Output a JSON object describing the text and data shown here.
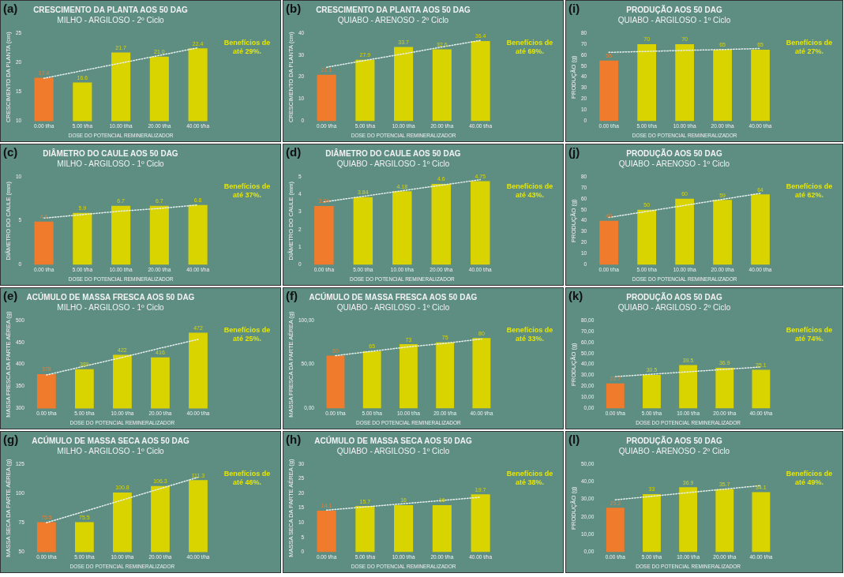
{
  "chart_data": [
    {
      "type": "bar",
      "title": "CRESCIMENTO DA PLANTA AOS 50 DAG",
      "subtitle": "MILHO - ARGILOSO - 2º Ciclo",
      "xlabel": "DOSE DO POTENCIAL REMINERALIZADOR",
      "ylabel": "CRESCIMENTO DA PLANTA (cm)",
      "categories": [
        "0.00 t/ha",
        "5.00 t/ha",
        "10.00 t/ha",
        "20.00 t/ha",
        "40.00 t/ha"
      ],
      "ylim": [
        10,
        25
      ],
      "yticks": [
        10,
        15,
        20,
        25
      ],
      "grid": false,
      "legend": false,
      "annotations": [
        "(a)",
        "Benefícios de até 29%."
      ],
      "series": [
        {
          "colors": [
            "#f07b2c",
            "#d9d400",
            "#d9d400",
            "#d9d400",
            "#d9d400"
          ],
          "values": [
            17.4,
            16.6,
            21.7,
            21.0,
            22.4
          ],
          "value_labels": [
            "17.4",
            "16.6",
            "21.7",
            "21.0",
            "22.4"
          ]
        },
        {
          "type": "line",
          "color": "#e8f0ee",
          "line_style": "dotted",
          "marker": "none",
          "values": [
            17.3,
            18.6,
            19.9,
            21.2,
            22.5
          ]
        }
      ]
    },
    {
      "type": "bar",
      "title": "CRESCIMENTO DA PLANTA AOS 50 DAG",
      "subtitle": "QUIABO - ARENOSO - 2º Ciclo",
      "xlabel": "DOSE DO POTENCIAL REMINERALIZADOR",
      "ylabel": "CRESCIMENTO DA PLANTA (cm)",
      "categories": [
        "0.00 t/ha",
        "5.00 t/ha",
        "10.00 t/ha",
        "20.00 t/ha",
        "40.00 t/ha"
      ],
      "ylim": [
        0,
        40
      ],
      "yticks": [
        0,
        10,
        20,
        30,
        40
      ],
      "grid": false,
      "legend": false,
      "annotations": [
        "(b)",
        "Benefícios de até 69%."
      ],
      "series": [
        {
          "colors": [
            "#f07b2c",
            "#d9d400",
            "#d9d400",
            "#d9d400",
            "#d9d400"
          ],
          "values": [
            21.1,
            27.9,
            33.7,
            32.6,
            36.4
          ],
          "value_labels": [
            "21.1",
            "27.9",
            "33.7",
            "32.6",
            "36.4"
          ]
        },
        {
          "type": "line",
          "color": "#e8f0ee",
          "line_style": "dotted",
          "marker": "none",
          "values": [
            24.5,
            27.6,
            30.6,
            33.7,
            36.7
          ]
        }
      ]
    },
    {
      "type": "bar",
      "title": "PRODUÇÃO AOS 50 DAG",
      "subtitle": "QUIABO - ARGILOSO - 1º Ciclo",
      "xlabel": "DOSE DO POTENCIAL REMINERALIZADOR",
      "ylabel": "PRODUÇÃO (g)",
      "categories": [
        "0.00 t/ha",
        "5.00 t/ha",
        "10.00 t/ha",
        "20.00 t/ha",
        "40.00 t/ha"
      ],
      "ylim": [
        0,
        80
      ],
      "yticks": [
        0,
        10,
        20,
        30,
        40,
        50,
        60,
        70,
        80
      ],
      "grid": false,
      "legend": false,
      "annotations": [
        "(i)",
        "Benefícios de até 27%."
      ],
      "series": [
        {
          "colors": [
            "#f07b2c",
            "#d9d400",
            "#d9d400",
            "#d9d400",
            "#d9d400"
          ],
          "values": [
            55,
            70,
            70,
            65,
            65
          ],
          "value_labels": [
            "55",
            "70",
            "70",
            "65",
            "65"
          ]
        },
        {
          "type": "line",
          "color": "#e8f0ee",
          "line_style": "dotted",
          "marker": "none",
          "values": [
            62.5,
            63.4,
            64.3,
            65.1,
            66
          ]
        }
      ]
    },
    {
      "type": "bar",
      "title": "DIÂMETRO DO CAULE AOS 50 DAG",
      "subtitle": "MILHO - ARGILOSO - 1º Ciclo",
      "xlabel": "DOSE DO POTENCIAL REMINERALIZADOR",
      "ylabel": "DIÂMETRO DO CAULE (mm)",
      "categories": [
        "0.00 t/ha",
        "5.00 t/ha",
        "10.00 t/ha",
        "20.00 t/ha",
        "40.00 t/ha"
      ],
      "ylim": [
        0,
        10
      ],
      "yticks": [
        0,
        5,
        10
      ],
      "grid": false,
      "legend": false,
      "annotations": [
        "(c)",
        "Benefícios de até 37%."
      ],
      "series": [
        {
          "colors": [
            "#f07b2c",
            "#d9d400",
            "#d9d400",
            "#d9d400",
            "#d9d400"
          ],
          "values": [
            4.9,
            5.9,
            6.7,
            6.7,
            6.8
          ],
          "value_labels": [
            "4.9",
            "5.9",
            "6.7",
            "6.7",
            "6.8"
          ]
        },
        {
          "type": "line",
          "color": "#e8f0ee",
          "line_style": "dotted",
          "marker": "none",
          "values": [
            5.3,
            5.7,
            6.1,
            6.4,
            6.8
          ]
        }
      ]
    },
    {
      "type": "bar",
      "title": "DIÂMETRO DO CAULE AOS 50 DAG",
      "subtitle": "QUIABO - ARGILOSO - 1º Ciclo",
      "xlabel": "DOSE DO POTENCIAL REMINERALIZADOR",
      "ylabel": "DIÂMETRO DO CAULE (mm)",
      "categories": [
        "0.00 t/ha",
        "5.00 t/ha",
        "10.00 t/ha",
        "20.00 t/ha",
        "40.00 t/ha"
      ],
      "ylim": [
        0,
        5
      ],
      "yticks": [
        0,
        1,
        2,
        3,
        4,
        5
      ],
      "grid": false,
      "legend": false,
      "annotations": [
        "(d)",
        "Benefícios de até 43%."
      ],
      "series": [
        {
          "colors": [
            "#f07b2c",
            "#d9d400",
            "#d9d400",
            "#d9d400",
            "#d9d400"
          ],
          "values": [
            3.34,
            3.84,
            4.18,
            4.6,
            4.75
          ],
          "value_labels": [
            "3.34",
            "3.84",
            "4.18",
            "4.6",
            "4.75"
          ]
        },
        {
          "type": "line",
          "color": "#e8f0ee",
          "line_style": "dotted",
          "marker": "none",
          "values": [
            3.57,
            3.89,
            4.21,
            4.52,
            4.84
          ]
        }
      ]
    },
    {
      "type": "bar",
      "title": "PRODUÇÃO AOS 50 DAG",
      "subtitle": "QUIABO - ARENOSO - 1º Ciclo",
      "xlabel": "DOSE DO POTENCIAL REMINERALIZADOR",
      "ylabel": "PRODUÇÃO (g)",
      "categories": [
        "0.00 t/ha",
        "5.00 t/ha",
        "10.00 t/ha",
        "20.00 t/ha",
        "40.00 t/ha"
      ],
      "ylim": [
        0,
        80
      ],
      "yticks": [
        0,
        10,
        20,
        30,
        40,
        50,
        60,
        70,
        80
      ],
      "grid": false,
      "legend": false,
      "annotations": [
        "(j)",
        "Benefícios de até 62%."
      ],
      "series": [
        {
          "colors": [
            "#f07b2c",
            "#d9d400",
            "#d9d400",
            "#d9d400",
            "#d9d400"
          ],
          "values": [
            40,
            50,
            60,
            59,
            64
          ],
          "value_labels": [
            "40",
            "50",
            "60",
            "59",
            "64"
          ]
        },
        {
          "type": "line",
          "color": "#e8f0ee",
          "line_style": "dotted",
          "marker": "none",
          "values": [
            43,
            48.5,
            54,
            59.5,
            65
          ]
        }
      ]
    },
    {
      "type": "bar",
      "title": "ACÚMULO DE MASSA FRESCA AOS 50 DAG",
      "subtitle": "MILHO - ARGILOSO - 1º Ciclo",
      "xlabel": "DOSE DO POTENCIAL REMINERALIZADOR",
      "ylabel": "MASSA FRESCA DA PARTE AÉREA (g)",
      "categories": [
        "0.00 t/ha",
        "5.00 t/ha",
        "10.00 t/ha",
        "20.00 t/ha",
        "40.00 t/ha"
      ],
      "ylim": [
        300,
        500
      ],
      "yticks": [
        300,
        350,
        400,
        450,
        500
      ],
      "grid": false,
      "legend": false,
      "annotations": [
        "(e)",
        "Benefícios de até 25%."
      ],
      "series": [
        {
          "colors": [
            "#f07b2c",
            "#d9d400",
            "#d9d400",
            "#d9d400",
            "#d9d400"
          ],
          "values": [
            378,
            389,
            422,
            416,
            472
          ],
          "value_labels": [
            "378",
            "389",
            "422",
            "416",
            "472"
          ]
        },
        {
          "type": "line",
          "color": "#e8f0ee",
          "line_style": "dotted",
          "marker": "none",
          "values": [
            376,
            396,
            416,
            437,
            457
          ]
        }
      ]
    },
    {
      "type": "bar",
      "title": "ACÚMULO DE MASSA FRESCA AOS 50 DAG",
      "subtitle": "QUIABO - ARGILOSO - 1º Ciclo",
      "xlabel": "DOSE DO POTENCIAL REMINERALIZADOR",
      "ylabel": "MASSA FRESCA DA PARTE AÉREA (g)",
      "categories": [
        "0.00 t/ha",
        "5.00 t/ha",
        "10.00 t/ha",
        "20.00 t/ha",
        "40.00 t/ha"
      ],
      "ylim": [
        0,
        100
      ],
      "yticks": [
        {
          "value": 0,
          "label": "0,00"
        },
        {
          "value": 50,
          "label": "50,00"
        },
        {
          "value": 100,
          "label": "100,00"
        }
      ],
      "grid": false,
      "legend": false,
      "annotations": [
        "(f)",
        "Benefícios de até 33%."
      ],
      "series": [
        {
          "colors": [
            "#f07b2c",
            "#d9d400",
            "#d9d400",
            "#d9d400",
            "#d9d400"
          ],
          "values": [
            60,
            65,
            73,
            75,
            80
          ],
          "value_labels": [
            "60",
            "65",
            "73",
            "75",
            "80"
          ]
        },
        {
          "type": "line",
          "color": "#e8f0ee",
          "line_style": "dotted",
          "marker": "none",
          "values": [
            60,
            65,
            70,
            74,
            79
          ]
        }
      ]
    },
    {
      "type": "bar",
      "title": "PRODUÇÃO AOS 50 DAG",
      "subtitle": "QUIABO - ARGILOSO - 2º Ciclo",
      "xlabel": "DOSE DO POTENCIAL REMINERALIZADOR",
      "ylabel": "PRODUÇÃO (g)",
      "categories": [
        "0.00 t/ha",
        "5.00 t/ha",
        "10.00 t/ha",
        "20.00 t/ha",
        "40.00 t/ha"
      ],
      "ylim": [
        0,
        80
      ],
      "yticks": [
        {
          "value": 0,
          "label": "0,00"
        },
        {
          "value": 10,
          "label": "10,00"
        },
        {
          "value": 20,
          "label": "20,00"
        },
        {
          "value": 30,
          "label": "30,00"
        },
        {
          "value": 40,
          "label": "40,00"
        },
        {
          "value": 50,
          "label": "50,00"
        },
        {
          "value": 60,
          "label": "60,00"
        },
        {
          "value": 70,
          "label": "70,00"
        },
        {
          "value": 80,
          "label": "80,00"
        }
      ],
      "grid": false,
      "legend": false,
      "annotations": [
        "(k)",
        "Benefícios de até 74%."
      ],
      "series": [
        {
          "colors": [
            "#f07b2c",
            "#d9d400",
            "#d9d400",
            "#d9d400",
            "#d9d400"
          ],
          "values": [
            22.7,
            30.5,
            39.5,
            36.9,
            35.1
          ],
          "value_labels": [
            "22.7",
            "30.5",
            "39.5",
            "36.9",
            "35.1"
          ]
        },
        {
          "type": "line",
          "color": "#e8f0ee",
          "line_style": "dotted",
          "marker": "none",
          "values": [
            28.9,
            31.1,
            33.3,
            35.5,
            37.7
          ]
        }
      ]
    },
    {
      "type": "bar",
      "title": "ACÚMULO DE MASSA SECA AOS 50 DAG",
      "subtitle": "MILHO - ARGILOSO - 1º Ciclo",
      "xlabel": "DOSE DO POTENCIAL REMINERALIZADOR",
      "ylabel": "MASSA SECA DA PARTE AÉREA (g)",
      "categories": [
        "0.00 t/ha",
        "5.00 t/ha",
        "10.00 t/ha",
        "20.00 t/ha",
        "40.00 t/ha"
      ],
      "ylim": [
        50,
        125
      ],
      "yticks": [
        50,
        75,
        100,
        125
      ],
      "grid": false,
      "legend": false,
      "annotations": [
        "(g)",
        "Benefícios de até 46%."
      ],
      "series": [
        {
          "colors": [
            "#f07b2c",
            "#d9d400",
            "#d9d400",
            "#d9d400",
            "#d9d400"
          ],
          "values": [
            75.5,
            75.5,
            100.8,
            106.3,
            111.3
          ],
          "value_labels": [
            "75.5",
            "75.5",
            "100.8",
            "106.3",
            "111.3"
          ]
        },
        {
          "type": "line",
          "color": "#e8f0ee",
          "line_style": "dotted",
          "marker": "none",
          "values": [
            75,
            84.7,
            94.4,
            104.1,
            113.8
          ]
        }
      ]
    },
    {
      "type": "bar",
      "title": "ACÚMULO DE MASSA SECA AOS 50 DAG",
      "subtitle": "QUIABO - ARGILOSO - 1º Ciclo",
      "xlabel": "DOSE DO POTENCIAL REMINERALIZADOR",
      "ylabel": "MASSA SECA DA PARTE AÉREA (g)",
      "categories": [
        "0.00 t/ha",
        "5.00 t/ha",
        "10.00 t/ha",
        "20.00 t/ha",
        "40.00 t/ha"
      ],
      "ylim": [
        0,
        30
      ],
      "yticks": [
        0,
        5,
        10,
        15,
        20,
        25,
        30
      ],
      "grid": false,
      "legend": false,
      "annotations": [
        "(h)",
        "Benefícios de até 38%."
      ],
      "series": [
        {
          "colors": [
            "#f07b2c",
            "#d9d400",
            "#d9d400",
            "#d9d400",
            "#d9d400"
          ],
          "values": [
            14.1,
            15.7,
            16,
            16,
            19.7
          ],
          "value_labels": [
            "14.1",
            "15.7",
            "16",
            "16",
            "19.7"
          ]
        },
        {
          "type": "line",
          "color": "#e8f0ee",
          "line_style": "dotted",
          "marker": "none",
          "values": [
            14.3,
            15.4,
            16.5,
            17.6,
            18.7
          ]
        }
      ]
    },
    {
      "type": "bar",
      "title": "PRODUÇÃO AOS 50 DAG",
      "subtitle": "QUIABO - ARENOSO - 2º Ciclo",
      "xlabel": "DOSE DO POTENCIAL REMINERALIZADOR",
      "ylabel": "PRODUÇÃO (g)",
      "categories": [
        "0.00 t/ha",
        "5.00 t/ha",
        "10.00 t/ha",
        "20.00 t/ha",
        "40.00 t/ha"
      ],
      "ylim": [
        0,
        50
      ],
      "yticks": [
        {
          "value": 0,
          "label": "0,00"
        },
        {
          "value": 10,
          "label": "10,00"
        },
        {
          "value": 20,
          "label": "20,00"
        },
        {
          "value": 30,
          "label": "30,00"
        },
        {
          "value": 40,
          "label": "40,00"
        },
        {
          "value": 50,
          "label": "50,00"
        }
      ],
      "grid": false,
      "legend": false,
      "annotations": [
        "(l)",
        "Benefícios de até 49%."
      ],
      "series": [
        {
          "colors": [
            "#f07b2c",
            "#d9d400",
            "#d9d400",
            "#d9d400",
            "#d9d400"
          ],
          "values": [
            25.2,
            33,
            36.9,
            35.7,
            34.1
          ],
          "value_labels": [
            "25.2",
            "33",
            "36.9",
            "35.7",
            "34.1"
          ]
        },
        {
          "type": "line",
          "color": "#e8f0ee",
          "line_style": "dotted",
          "marker": "none",
          "values": [
            29.7,
            31.7,
            33.8,
            35.8,
            37.8
          ]
        }
      ]
    }
  ]
}
